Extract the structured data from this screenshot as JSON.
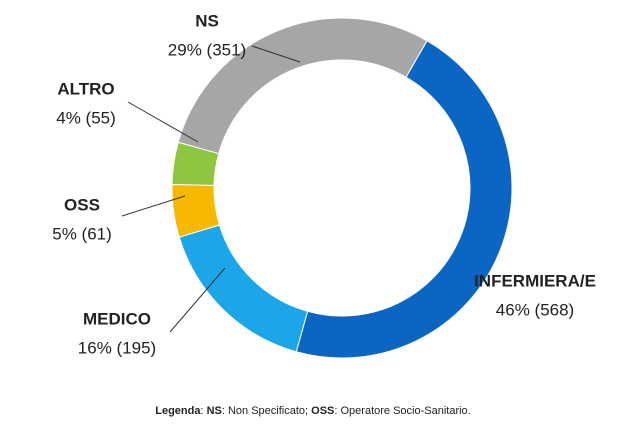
{
  "chart_data": {
    "type": "pie",
    "donut": true,
    "categories": [
      "INFERMIERA/E",
      "MEDICO",
      "OSS",
      "ALTRO",
      "NS"
    ],
    "values": [
      46,
      16,
      5,
      4,
      29
    ],
    "value_labels": [
      "46% (568)",
      "16% (195)",
      "5% (61)",
      "4% (55)",
      "29% (351)"
    ],
    "colors": [
      "#0a66c2",
      "#1aa6e8",
      "#f6b900",
      "#8dc63f",
      "#a6a6a6"
    ],
    "footnote": [
      "Legenda",
      ": ",
      "NS",
      ": Non Specificato; ",
      "OSS",
      ": Operatore Socio-Sanitario."
    ]
  }
}
